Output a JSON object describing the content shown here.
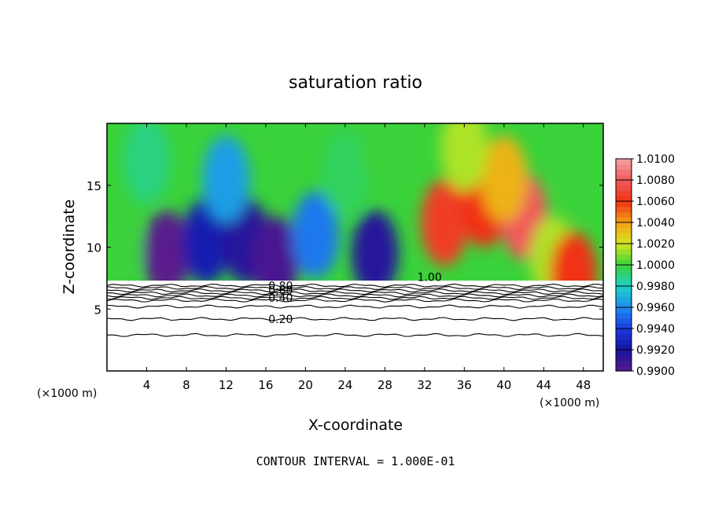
{
  "chart_data": {
    "type": "heatmap",
    "title": "saturation ratio",
    "xlabel": "X-coordinate",
    "ylabel": "Z-coordinate",
    "x_unit": "(×1000 m)",
    "z_unit": "(×1000 m)",
    "footer": "CONTOUR INTERVAL = 1.000E-01",
    "xlim": [
      0,
      50
    ],
    "ylim": [
      0,
      20
    ],
    "x_ticks": [
      4,
      8,
      12,
      16,
      20,
      24,
      28,
      32,
      36,
      40,
      44,
      48
    ],
    "y_ticks": [
      5,
      10,
      15
    ],
    "colorbar": {
      "levels": [
        "0.9900",
        "0.9920",
        "0.9940",
        "0.9960",
        "0.9980",
        "1.0000",
        "1.0020",
        "1.0040",
        "1.0060",
        "1.0080",
        "1.0100"
      ],
      "colors": [
        "#5a1a8c",
        "#1414a0",
        "#1a3ae0",
        "#1e8cf0",
        "#1ed2c8",
        "#3ad23a",
        "#d2e81e",
        "#f5a014",
        "#f03214",
        "#f05a5a",
        "#f5a0a0"
      ],
      "bands": [
        "0.9900",
        "0.9905",
        "0.9910",
        "0.9915",
        "0.9920",
        "0.9925",
        "0.9930",
        "0.9935",
        "0.9940",
        "0.9945",
        "0.9950",
        "0.9955",
        "0.9960",
        "0.9965",
        "0.9970",
        "0.9975",
        "0.9980",
        "0.9985",
        "0.9990",
        "0.9995",
        "1.0000",
        "1.0005",
        "1.0010",
        "1.0015",
        "1.0020",
        "1.0025",
        "1.0030",
        "1.0035",
        "1.0040",
        "1.0045",
        "1.0050",
        "1.0055",
        "1.0060",
        "1.0065",
        "1.0070",
        "1.0075",
        "1.0080",
        "1.0085",
        "1.0090",
        "1.0095",
        "1.0100"
      ]
    },
    "contour_labels": [
      {
        "text": "0.80",
        "x": 17.5,
        "z": 6.9
      },
      {
        "text": "0.60",
        "x": 17.5,
        "z": 6.5
      },
      {
        "text": "0.40",
        "x": 17.5,
        "z": 5.9
      },
      {
        "text": "0.20",
        "x": 17.5,
        "z": 4.2
      },
      {
        "text": "1.00",
        "x": 32.5,
        "z": 7.6
      }
    ],
    "contour_lines_z": [
      6.9,
      6.7,
      6.5,
      6.3,
      6.1,
      5.9,
      5.7,
      5.2,
      4.2,
      2.9
    ],
    "surface_z": 7.3,
    "features": [
      {
        "x": 6,
        "z": 9.5,
        "value": 0.99
      },
      {
        "x": 10,
        "z": 10.5,
        "value": 0.9925
      },
      {
        "x": 14,
        "z": 10.5,
        "value": 0.9915
      },
      {
        "x": 17,
        "z": 9.0,
        "value": 0.9905
      },
      {
        "x": 21,
        "z": 11.0,
        "value": 0.9955
      },
      {
        "x": 27,
        "z": 9.5,
        "value": 0.9915
      },
      {
        "x": 4,
        "z": 17.0,
        "value": 0.999
      },
      {
        "x": 12,
        "z": 15.5,
        "value": 0.9965
      },
      {
        "x": 24,
        "z": 16.0,
        "value": 0.9995
      },
      {
        "x": 28,
        "z": 18.0,
        "value": 1.0
      },
      {
        "x": 34,
        "z": 12.0,
        "value": 1.0065
      },
      {
        "x": 38,
        "z": 13.5,
        "value": 1.006
      },
      {
        "x": 42,
        "z": 12.5,
        "value": 1.008
      },
      {
        "x": 40,
        "z": 15.5,
        "value": 1.0035
      },
      {
        "x": 45,
        "z": 9.0,
        "value": 1.0015
      },
      {
        "x": 47,
        "z": 7.8,
        "value": 1.006
      },
      {
        "x": 36,
        "z": 18.0,
        "value": 1.0015
      },
      {
        "x": 48,
        "z": 16.0,
        "value": 1.0
      },
      {
        "x": 1,
        "z": 10.0,
        "value": 1.0
      }
    ]
  }
}
